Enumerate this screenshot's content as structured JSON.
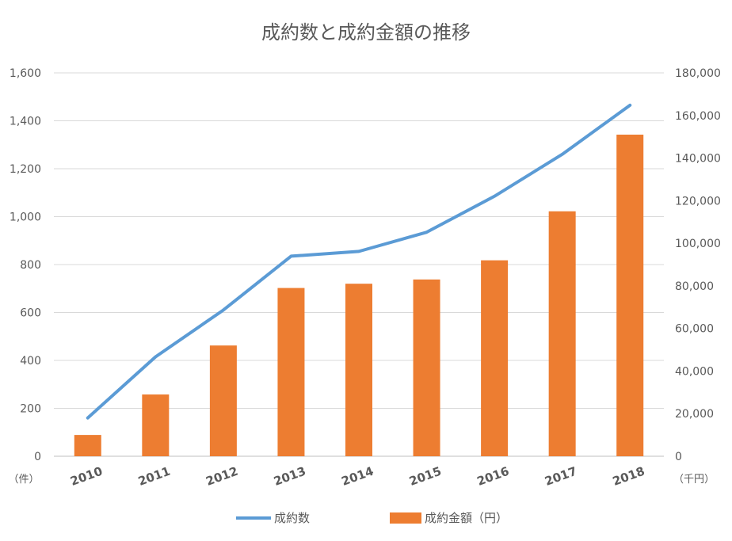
{
  "chart_data": {
    "type": "bar+line",
    "title": "成約数と成約金額の推移",
    "categories": [
      "2010",
      "2011",
      "2012",
      "2013",
      "2014",
      "2015",
      "2016",
      "2017",
      "2018"
    ],
    "series": [
      {
        "name": "成約金額（円）",
        "type": "bar",
        "axis": "right",
        "color": "#ED7D31",
        "values": [
          10000,
          29000,
          52000,
          79000,
          81000,
          83000,
          92000,
          115000,
          151000
        ]
      },
      {
        "name": "成約数",
        "type": "line",
        "axis": "left",
        "color": "#5B9BD5",
        "values": [
          160,
          415,
          610,
          835,
          855,
          935,
          1085,
          1260,
          1465
        ]
      }
    ],
    "left_axis": {
      "unit_label": "（件）",
      "range": [
        0,
        1600
      ],
      "ticks": [
        "0",
        "200",
        "400",
        "600",
        "800",
        "1,000",
        "1,200",
        "1,400",
        "1,600"
      ]
    },
    "right_axis": {
      "unit_label": "（千円）",
      "range": [
        0,
        180000
      ],
      "ticks": [
        "0",
        "20,000",
        "40,000",
        "60,000",
        "80,000",
        "100,000",
        "120,000",
        "140,000",
        "160,000",
        "180,000"
      ]
    },
    "grid": true,
    "legend_position": "bottom"
  }
}
